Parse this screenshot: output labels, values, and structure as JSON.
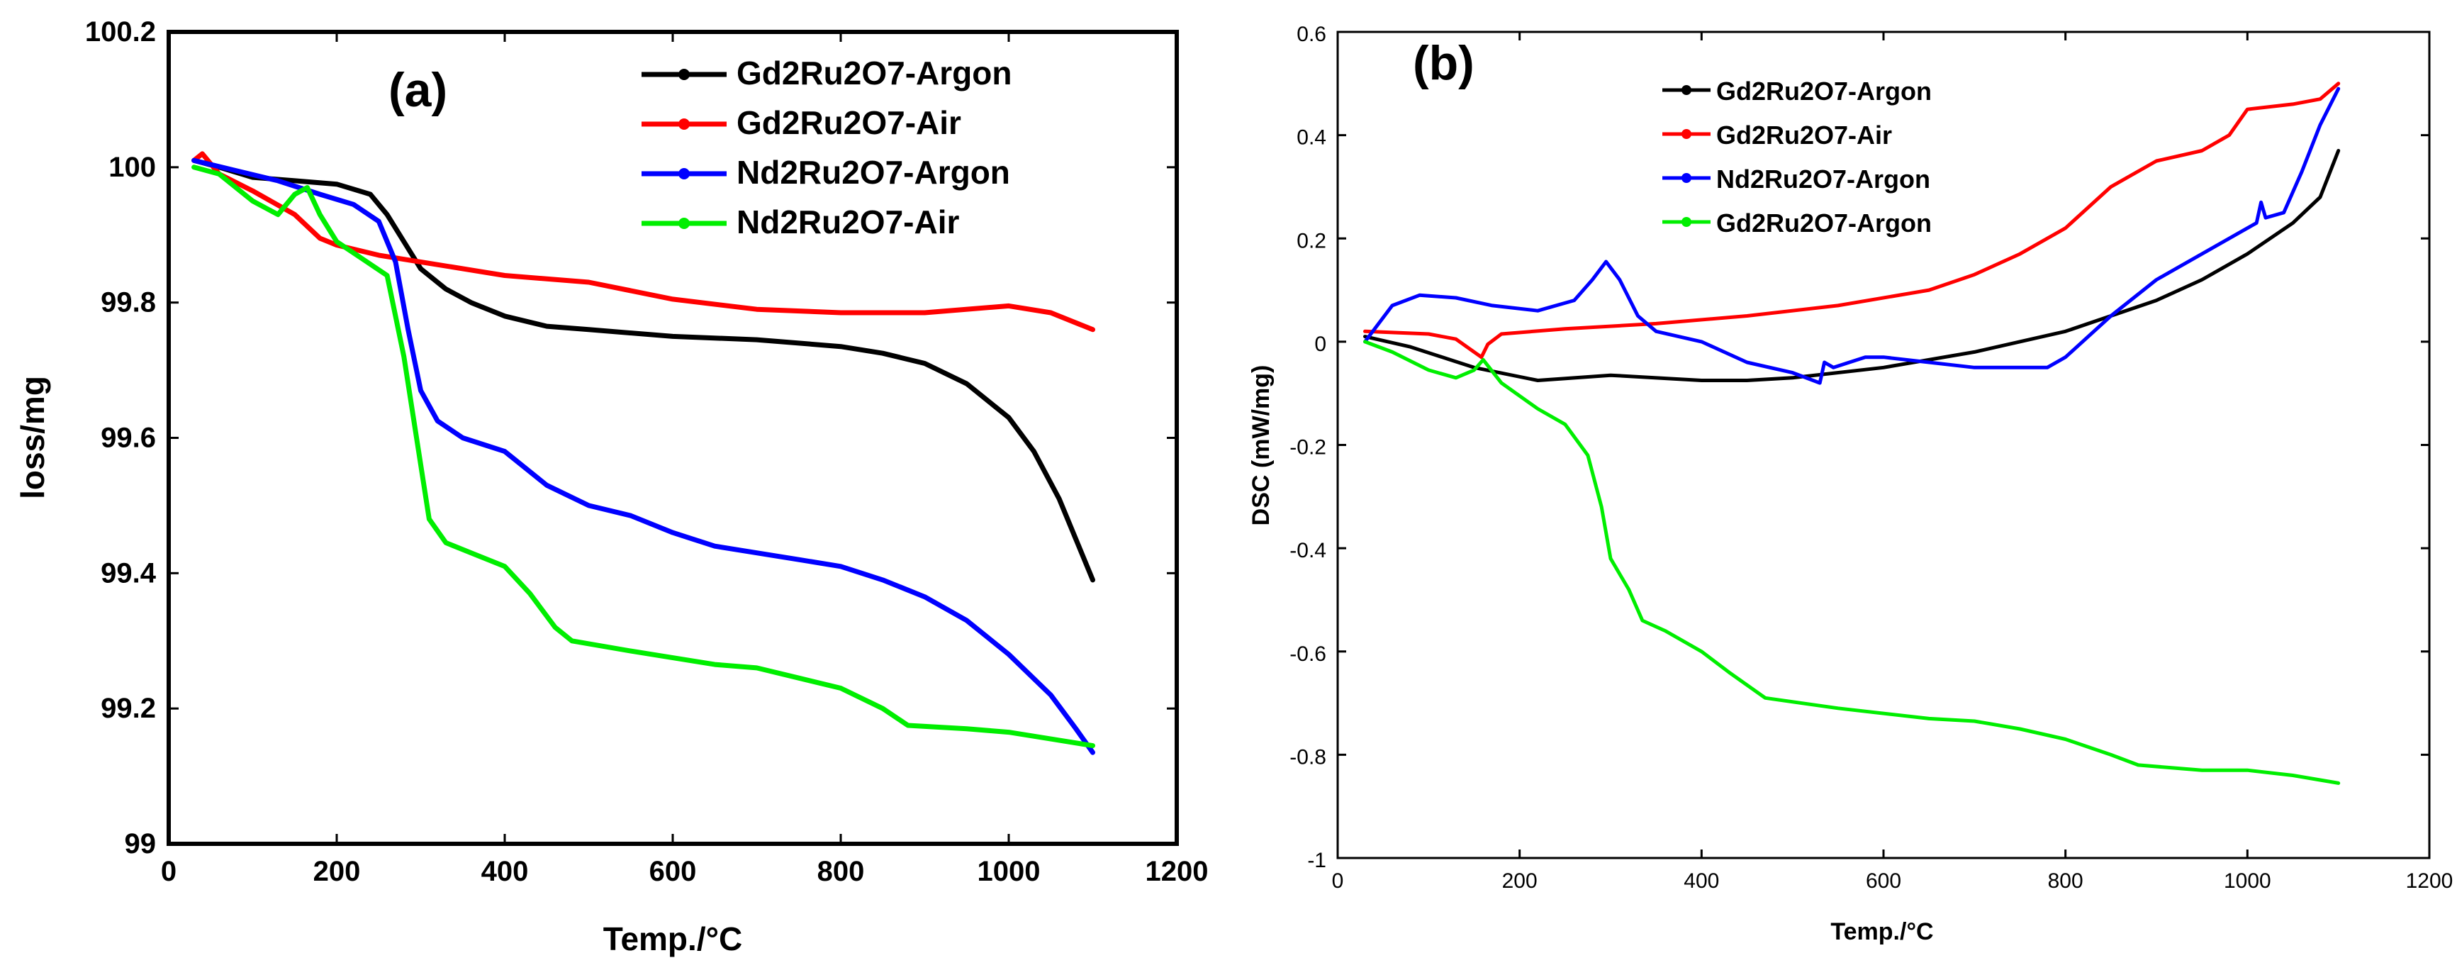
{
  "chart_data": [
    {
      "type": "line",
      "panel_label": "(a)",
      "xlabel": "Temp./°C",
      "ylabel": "loss/mg",
      "xlim": [
        0,
        1200
      ],
      "ylim": [
        99,
        100.2
      ],
      "xticks": [
        "0",
        "200",
        "400",
        "600",
        "800",
        "1000",
        "1200"
      ],
      "yticks": [
        "99",
        "99.2",
        "99.4",
        "99.6",
        "99.8",
        "100",
        "100.2"
      ],
      "legend_position": "top-right",
      "series": [
        {
          "name": "Gd2Ru2O7-Argon",
          "color": "#000000",
          "x": [
            30,
            60,
            100,
            150,
            200,
            240,
            260,
            280,
            300,
            330,
            360,
            400,
            450,
            500,
            600,
            700,
            800,
            850,
            900,
            950,
            1000,
            1030,
            1060,
            1080,
            1100
          ],
          "y": [
            100.01,
            100.0,
            99.985,
            99.98,
            99.975,
            99.96,
            99.93,
            99.89,
            99.85,
            99.82,
            99.8,
            99.78,
            99.765,
            99.76,
            99.75,
            99.745,
            99.735,
            99.725,
            99.71,
            99.68,
            99.63,
            99.58,
            99.51,
            99.45,
            99.39
          ]
        },
        {
          "name": "Gd2Ru2O7-Air",
          "color": "#ff0000",
          "x": [
            30,
            40,
            60,
            100,
            150,
            180,
            200,
            250,
            300,
            400,
            500,
            600,
            700,
            800,
            900,
            1000,
            1050,
            1100
          ],
          "y": [
            100.01,
            100.02,
            99.99,
            99.965,
            99.93,
            99.895,
            99.885,
            99.87,
            99.86,
            99.84,
            99.83,
            99.805,
            99.79,
            99.785,
            99.785,
            99.795,
            99.785,
            99.76
          ]
        },
        {
          "name": "Nd2Ru2O7-Argon",
          "color": "#0000ff",
          "x": [
            30,
            80,
            130,
            180,
            220,
            250,
            270,
            285,
            300,
            320,
            350,
            400,
            450,
            500,
            550,
            600,
            650,
            700,
            750,
            800,
            850,
            900,
            950,
            1000,
            1050,
            1080,
            1100
          ],
          "y": [
            100.01,
            99.995,
            99.98,
            99.96,
            99.945,
            99.92,
            99.86,
            99.76,
            99.67,
            99.625,
            99.6,
            99.58,
            99.53,
            99.5,
            99.485,
            99.46,
            99.44,
            99.43,
            99.42,
            99.41,
            99.39,
            99.365,
            99.33,
            99.28,
            99.22,
            99.17,
            99.135
          ]
        },
        {
          "name": "Nd2Ru2O7-Air",
          "color": "#00ee00",
          "x": [
            30,
            60,
            100,
            130,
            150,
            165,
            180,
            200,
            230,
            260,
            280,
            295,
            310,
            330,
            360,
            400,
            430,
            460,
            480,
            550,
            600,
            650,
            700,
            750,
            800,
            850,
            880,
            950,
            1000,
            1050,
            1100
          ],
          "y": [
            100.0,
            99.99,
            99.95,
            99.93,
            99.96,
            99.97,
            99.93,
            99.89,
            99.865,
            99.84,
            99.72,
            99.6,
            99.48,
            99.445,
            99.43,
            99.41,
            99.37,
            99.32,
            99.3,
            99.285,
            99.275,
            99.265,
            99.26,
            99.245,
            99.23,
            99.2,
            99.175,
            99.17,
            99.165,
            99.155,
            99.145
          ]
        }
      ]
    },
    {
      "type": "line",
      "panel_label": "(b)",
      "xlabel": "Temp./°C",
      "ylabel": "DSC (mW/mg)",
      "xlim": [
        0,
        1200
      ],
      "ylim": [
        -1,
        0.6
      ],
      "xticks": [
        "0",
        "200",
        "400",
        "600",
        "800",
        "1000",
        "1200"
      ],
      "yticks": [
        "-1",
        "-0.8",
        "-0.6",
        "-0.4",
        "-0.2",
        "0",
        "0.2",
        "0.4",
        "0.6"
      ],
      "legend_position": "top-center",
      "series": [
        {
          "name": "Gd2Ru2O7-Argon",
          "color": "#000000",
          "x": [
            30,
            80,
            150,
            220,
            300,
            400,
            450,
            500,
            600,
            700,
            800,
            900,
            950,
            1000,
            1050,
            1080,
            1100
          ],
          "y": [
            0.01,
            -0.01,
            -0.05,
            -0.075,
            -0.065,
            -0.075,
            -0.075,
            -0.07,
            -0.05,
            -0.02,
            0.02,
            0.08,
            0.12,
            0.17,
            0.23,
            0.28,
            0.37
          ]
        },
        {
          "name": "Gd2Ru2O7-Air",
          "color": "#ff0000",
          "x": [
            30,
            100,
            130,
            150,
            158,
            165,
            180,
            250,
            350,
            450,
            550,
            650,
            700,
            750,
            800,
            850,
            900,
            950,
            980,
            1000,
            1050,
            1080,
            1100
          ],
          "y": [
            0.02,
            0.015,
            0.005,
            -0.02,
            -0.03,
            -0.005,
            0.015,
            0.025,
            0.035,
            0.05,
            0.07,
            0.1,
            0.13,
            0.17,
            0.22,
            0.3,
            0.35,
            0.37,
            0.4,
            0.45,
            0.46,
            0.47,
            0.5
          ]
        },
        {
          "name": "Nd2Ru2O7-Argon",
          "color": "#0000ff",
          "x": [
            30,
            60,
            90,
            130,
            170,
            220,
            260,
            280,
            295,
            310,
            330,
            350,
            400,
            450,
            500,
            530,
            535,
            545,
            580,
            600,
            700,
            780,
            800,
            850,
            900,
            950,
            1000,
            1010,
            1015,
            1020,
            1040,
            1060,
            1080,
            1100
          ],
          "y": [
            0.0,
            0.07,
            0.09,
            0.085,
            0.07,
            0.06,
            0.08,
            0.12,
            0.155,
            0.12,
            0.05,
            0.02,
            0.0,
            -0.04,
            -0.06,
            -0.08,
            -0.04,
            -0.05,
            -0.03,
            -0.03,
            -0.05,
            -0.05,
            -0.03,
            0.05,
            0.12,
            0.17,
            0.22,
            0.23,
            0.27,
            0.24,
            0.25,
            0.33,
            0.42,
            0.49
          ]
        },
        {
          "name": "Gd2Ru2O7-Argon",
          "color": "#00ee00",
          "x": [
            30,
            60,
            100,
            130,
            150,
            160,
            180,
            220,
            250,
            275,
            290,
            300,
            320,
            335,
            360,
            400,
            430,
            470,
            550,
            650,
            700,
            750,
            800,
            850,
            880,
            950,
            1000,
            1050,
            1100
          ],
          "y": [
            0.0,
            -0.02,
            -0.055,
            -0.07,
            -0.055,
            -0.035,
            -0.08,
            -0.13,
            -0.16,
            -0.22,
            -0.32,
            -0.42,
            -0.48,
            -0.54,
            -0.56,
            -0.6,
            -0.64,
            -0.69,
            -0.71,
            -0.73,
            -0.735,
            -0.75,
            -0.77,
            -0.8,
            -0.82,
            -0.83,
            -0.83,
            -0.84,
            -0.855
          ]
        }
      ]
    }
  ]
}
